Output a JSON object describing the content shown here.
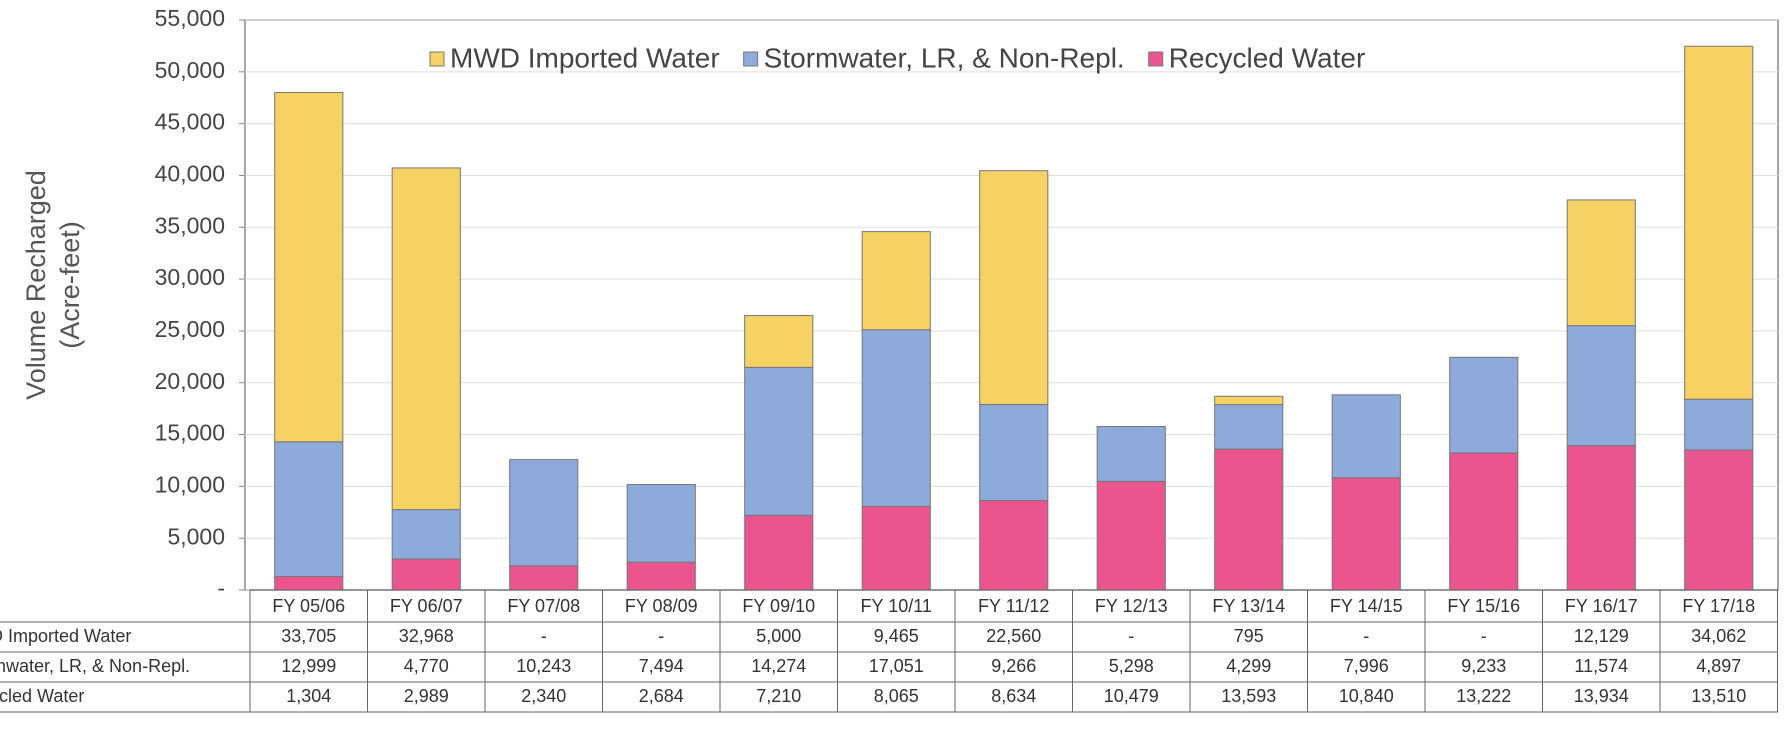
{
  "chart_data": {
    "type": "stacked_bar",
    "ylabel": [
      "Volume Recharged",
      "(Acre-feet)"
    ],
    "categories": [
      "FY 05/06",
      "FY 06/07",
      "FY 07/08",
      "FY 08/09",
      "FY 09/10",
      "FY 10/11",
      "FY 11/12",
      "FY 12/13",
      "FY 13/14",
      "FY 14/15",
      "FY 15/16",
      "FY 16/17",
      "FY 17/18"
    ],
    "series": [
      {
        "name": "MWD Imported Water",
        "color": "#f5d263",
        "values": [
          33705,
          32968,
          null,
          null,
          5000,
          9465,
          22560,
          null,
          795,
          null,
          null,
          12129,
          34062
        ],
        "value_labels": [
          "33,705",
          "32,968",
          "-",
          "-",
          "5,000",
          "9,465",
          "22,560",
          "-",
          "795",
          "-",
          "-",
          "12,129",
          "34,062"
        ]
      },
      {
        "name": "Stormwater, LR, & Non-Repl.",
        "color": "#8eaadb",
        "values": [
          12999,
          4770,
          10243,
          7494,
          14274,
          17051,
          9266,
          5298,
          4299,
          7996,
          9233,
          11574,
          4897
        ],
        "value_labels": [
          "12,999",
          "4,770",
          "10,243",
          "7,494",
          "14,274",
          "17,051",
          "9,266",
          "5,298",
          "4,299",
          "7,996",
          "9,233",
          "11,574",
          "4,897"
        ]
      },
      {
        "name": "Recycled Water",
        "color": "#e9558c",
        "values": [
          1304,
          2989,
          2340,
          2684,
          7210,
          8065,
          8634,
          10479,
          13593,
          10840,
          13222,
          13934,
          13510
        ],
        "value_labels": [
          "1,304",
          "2,989",
          "2,340",
          "2,684",
          "7,210",
          "8,065",
          "8,634",
          "10,479",
          "13,593",
          "10,840",
          "13,222",
          "13,934",
          "13,510"
        ]
      }
    ],
    "ylim": [
      0,
      55000
    ],
    "yticks": [
      {
        "value": 0,
        "label": "-"
      },
      {
        "value": 5000,
        "label": "5,000"
      },
      {
        "value": 10000,
        "label": "10,000"
      },
      {
        "value": 15000,
        "label": "15,000"
      },
      {
        "value": 20000,
        "label": "20,000"
      },
      {
        "value": 25000,
        "label": "25,000"
      },
      {
        "value": 30000,
        "label": "30,000"
      },
      {
        "value": 35000,
        "label": "35,000"
      },
      {
        "value": 40000,
        "label": "40,000"
      },
      {
        "value": 45000,
        "label": "45,000"
      },
      {
        "value": 50000,
        "label": "50,000"
      },
      {
        "value": 55000,
        "label": "55,000"
      }
    ],
    "grid": true,
    "legend": "top"
  }
}
